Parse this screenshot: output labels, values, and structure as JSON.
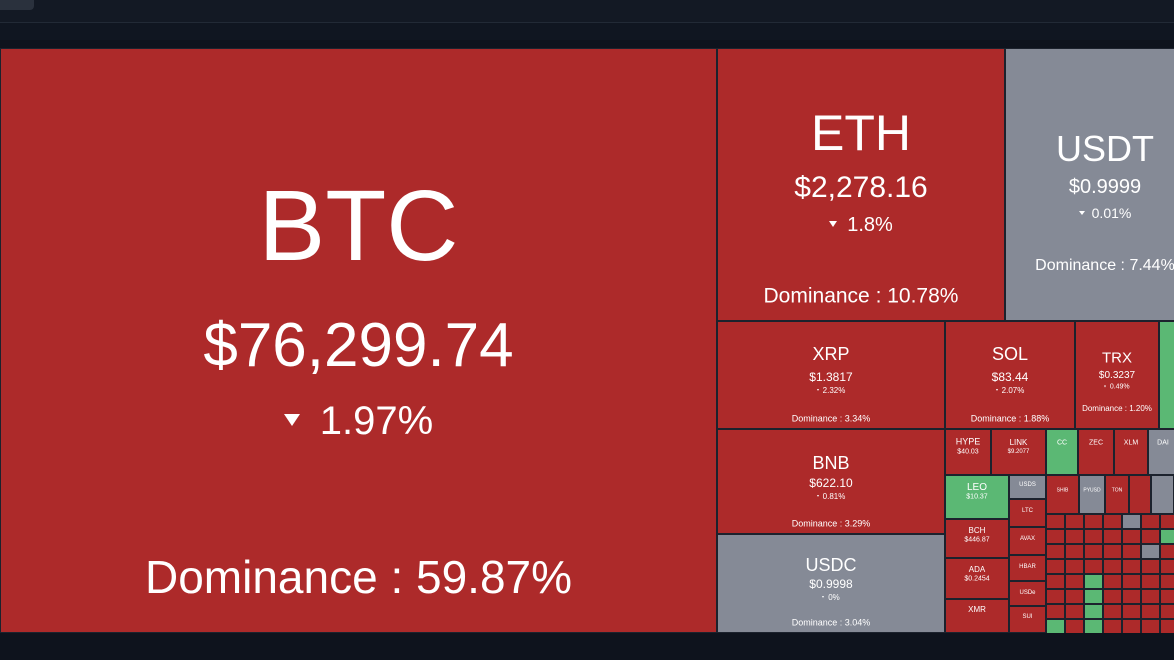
{
  "tiles": [
    {
      "symbol": "BTC",
      "price": "$76,299.74",
      "change": "1.97%",
      "dominance": "Dominance : 59.87%"
    },
    {
      "symbol": "ETH",
      "price": "$2,278.16",
      "change": "1.8%",
      "dominance": "Dominance : 10.78%"
    },
    {
      "symbol": "USDT",
      "price": "$0.9999",
      "change": "0.01%",
      "dominance": "Dominance : 7.44%"
    },
    {
      "symbol": "XRP",
      "price": "$1.3817",
      "change": "2.32%",
      "dominance": "Dominance : 3.34%"
    },
    {
      "symbol": "SOL",
      "price": "$83.44",
      "change": "2.07%",
      "dominance": "Dominance : 1.88%"
    },
    {
      "symbol": "TRX",
      "price": "$0.3237",
      "change": "0.49%",
      "dominance": "Dominance : 1.20%"
    },
    {
      "symbol": "BNB",
      "price": "$622.10",
      "change": "0.81%",
      "dominance": "Dominance : 3.29%"
    },
    {
      "symbol": "USDC",
      "price": "$0.9998",
      "change": "0%",
      "dominance": "Dominance : 3.04%"
    },
    {
      "symbol": "HYPE",
      "price": "$40.03"
    },
    {
      "symbol": "LINK",
      "price": "$9.2077"
    },
    {
      "symbol": "CC"
    },
    {
      "symbol": "ZEC"
    },
    {
      "symbol": "XLM"
    },
    {
      "symbol": "DAI"
    },
    {
      "symbol": "LEO",
      "price": "$10.37"
    },
    {
      "symbol": "USDS"
    },
    {
      "symbol": "LTC"
    },
    {
      "symbol": "AVAX"
    },
    {
      "symbol": "HBAR"
    },
    {
      "symbol": "USDe"
    },
    {
      "symbol": "SUI"
    },
    {
      "symbol": "SHIB"
    },
    {
      "symbol": "PYUSD"
    },
    {
      "symbol": "TON"
    },
    {
      "symbol": "BCH",
      "price": "$446.87"
    },
    {
      "symbol": "ADA",
      "price": "$0.2454"
    },
    {
      "symbol": "XMR"
    }
  ]
}
